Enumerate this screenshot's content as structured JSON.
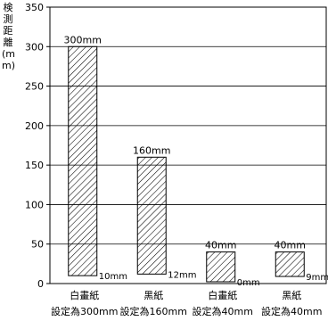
{
  "chart_data": {
    "type": "bar",
    "ylabel": "検測距離(mm)",
    "ylim": [
      0,
      350
    ],
    "yticks": [
      0,
      50,
      100,
      150,
      200,
      250,
      300,
      350
    ],
    "grid": true,
    "categories": [
      {
        "line1": "白畫紙",
        "line2": "設定為300mm"
      },
      {
        "line1": "黑紙",
        "line2": "設定為160mm"
      },
      {
        "line1": "白畫紙",
        "line2": "設定為40mm"
      },
      {
        "line1": "黑紙",
        "line2": "設定為40mm"
      }
    ],
    "series": [
      {
        "values": [
          300,
          160,
          40,
          40
        ],
        "labels": [
          "300mm",
          "160mm",
          "40mm",
          "40mm"
        ]
      },
      {
        "values": [
          10,
          12,
          0,
          9
        ],
        "labels": [
          "10mm",
          "12mm",
          "0mm",
          "9mm"
        ]
      }
    ]
  }
}
